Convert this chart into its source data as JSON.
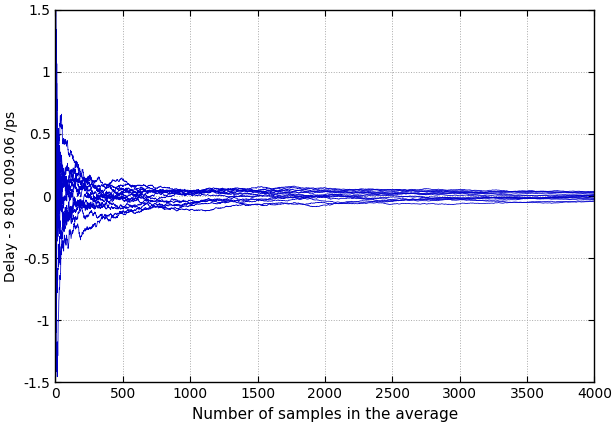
{
  "title": "",
  "xlabel": "Number of samples in the average",
  "ylabel": "Delay - 9 801 009.06 /ps",
  "xlim": [
    0,
    4000
  ],
  "ylim": [
    -1.5,
    1.5
  ],
  "xticks": [
    0,
    500,
    1000,
    1500,
    2000,
    2500,
    3000,
    3500,
    4000
  ],
  "yticks": [
    -1.5,
    -1.0,
    -0.5,
    0.0,
    0.5,
    1.0,
    1.5
  ],
  "line_color": "#0000cc",
  "n_traces": 15,
  "n_points": 4000,
  "seed": 42,
  "noise_std": 50.0,
  "alpha": 1.0,
  "linewidth": 0.55,
  "grid_color": "#aaaaaa",
  "grid_linestyle": ":",
  "grid_linewidth": 0.7,
  "background_color": "#ffffff",
  "fig_width": 6.16,
  "fig_height": 4.26,
  "dpi": 100
}
